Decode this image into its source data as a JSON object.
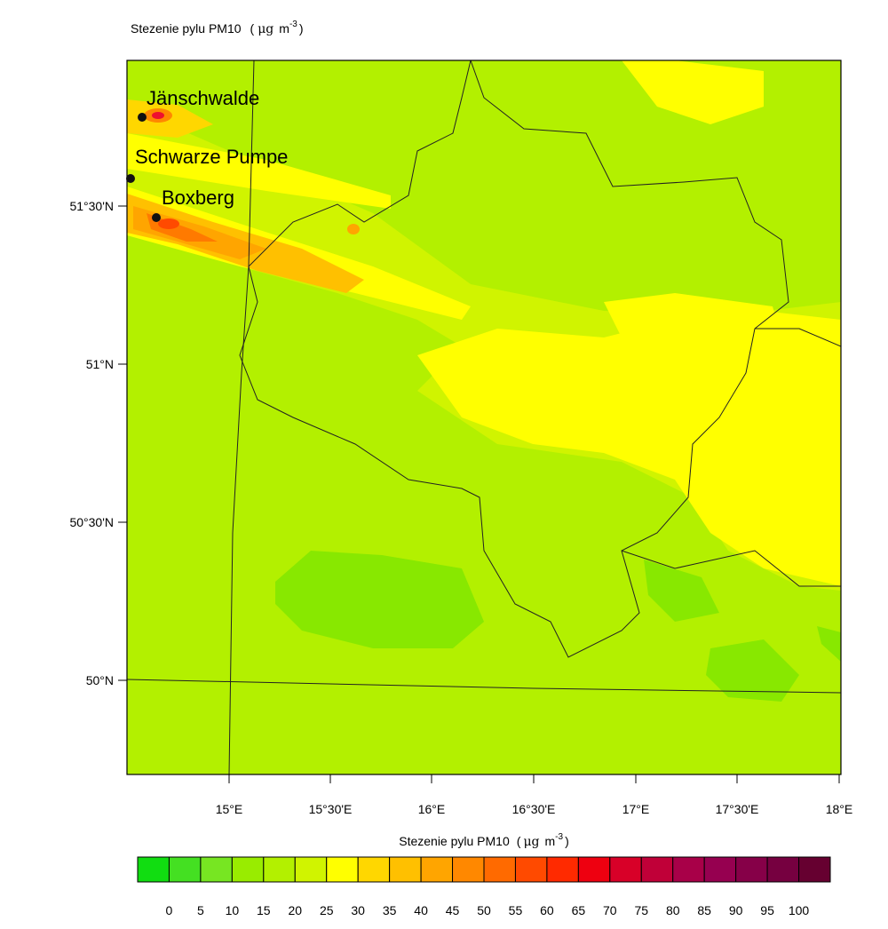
{
  "title": "Stezenie pylu PM10",
  "unit": {
    "open": "(",
    "mu": "μg",
    "m": "m",
    "exponent": "-3",
    "close": ")"
  },
  "places": [
    {
      "label": "Jänschwalde"
    },
    {
      "label": "Schwarze Pumpe"
    },
    {
      "label": "Boxberg"
    }
  ],
  "lat_labels": [
    "51°30'N",
    "51°N",
    "50°30'N",
    "50°N"
  ],
  "lon_labels": [
    "15°E",
    "15°30'E",
    "16°E",
    "16°30'E",
    "17°E",
    "17°30'E",
    "18°E"
  ],
  "colorbar": {
    "title": "Stezenie pylu PM10",
    "labels": [
      "0",
      "5",
      "10",
      "15",
      "20",
      "25",
      "30",
      "35",
      "40",
      "45",
      "50",
      "55",
      "60",
      "65",
      "70",
      "75",
      "80",
      "85",
      "90",
      "95",
      "100"
    ],
    "colors": [
      "#11dd11",
      "#44e022",
      "#77e622",
      "#99ec00",
      "#b3f000",
      "#d0f400",
      "#ffff00",
      "#ffd700",
      "#ffc000",
      "#ffa500",
      "#ff8800",
      "#ff6a00",
      "#ff4a00",
      "#ff2a00",
      "#ee0010",
      "#d80028",
      "#c00038",
      "#a80048",
      "#960050",
      "#860048",
      "#760040",
      "#660030"
    ]
  }
}
